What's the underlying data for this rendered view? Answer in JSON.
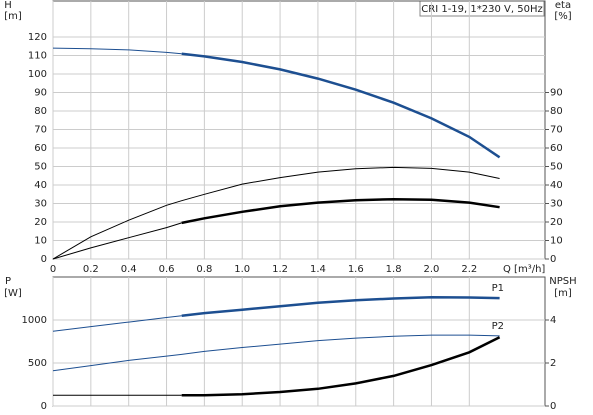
{
  "chart_data": [
    {
      "type": "line",
      "legend_box": "CRI 1-19, 1*230 V, 50Hz",
      "ylabel": "H",
      "yunit": "[m]",
      "y2label": "eta",
      "y2unit": "[%]",
      "xlabel": "Q [m³/h]",
      "x": [
        0,
        0.2,
        0.4,
        0.6,
        0.68,
        0.8,
        1.0,
        1.2,
        1.4,
        1.6,
        1.8,
        2.0,
        2.2,
        2.36
      ],
      "xlim": [
        0,
        2.6
      ],
      "xticks": [
        0,
        0.2,
        0.4,
        0.6,
        0.8,
        {
          "value": 1,
          "label": "1.0"
        },
        1.2,
        1.4,
        1.6,
        1.8,
        {
          "value": 2,
          "label": "2.0"
        },
        2.2
      ],
      "ylim": [
        0,
        130
      ],
      "yticks": [
        0,
        10,
        20,
        30,
        40,
        50,
        60,
        70,
        80,
        90,
        100,
        110,
        120
      ],
      "y2lim": [
        0,
        130
      ],
      "y2ticks": [
        0,
        10,
        20,
        30,
        40,
        50,
        60,
        70,
        80,
        90
      ],
      "grid": true,
      "series": [
        {
          "color": "#1d4f91",
          "width": 1,
          "values": [
            114,
            113.6,
            113,
            111.7,
            111,
            null,
            null,
            null,
            null,
            null,
            null,
            null,
            null,
            null
          ]
        },
        {
          "color": "#1d4f91",
          "width": 2.5,
          "values": [
            null,
            null,
            null,
            null,
            111,
            109.5,
            106.5,
            102.5,
            97.5,
            91.5,
            84.5,
            76,
            66,
            55
          ]
        },
        {
          "color": "#000000",
          "width": 1,
          "axis": "y2",
          "values": [
            0,
            12,
            21,
            29,
            31.5,
            35,
            40.5,
            44,
            47,
            48.8,
            49.5,
            49,
            47,
            43.5
          ]
        },
        {
          "color": "#000000",
          "width": 1,
          "axis": "y2",
          "values": [
            0,
            6,
            11.5,
            17,
            19.5,
            null,
            null,
            null,
            null,
            null,
            null,
            null,
            null,
            null
          ]
        },
        {
          "color": "#000000",
          "width": 2.5,
          "axis": "y2",
          "values": [
            null,
            null,
            null,
            null,
            19.5,
            22,
            25.5,
            28.5,
            30.5,
            31.8,
            32.3,
            32,
            30.5,
            28
          ]
        }
      ]
    },
    {
      "type": "line",
      "ylabel": "P",
      "yunit": "[W]",
      "y2label": "NPSH",
      "y2unit": "[m]",
      "x": [
        0,
        0.2,
        0.4,
        0.6,
        0.68,
        0.8,
        1.0,
        1.2,
        1.4,
        1.6,
        1.8,
        2.0,
        2.2,
        2.36
      ],
      "xlim": [
        0,
        2.6
      ],
      "xticks": [
        0,
        0.2,
        0.4,
        0.6,
        0.8,
        1,
        1.2,
        1.4,
        1.6,
        1.8,
        2,
        2.2
      ],
      "ylim": [
        0,
        1500
      ],
      "yticks": [
        0,
        500,
        1000
      ],
      "y2lim": [
        0,
        6
      ],
      "y2ticks": [
        0,
        2,
        4
      ],
      "grid": true,
      "series": [
        {
          "color": "#1d4f91",
          "width": 1,
          "values": [
            870,
            923,
            976,
            1029,
            1050,
            null,
            null,
            null,
            null,
            null,
            null,
            null,
            null,
            null
          ]
        },
        {
          "name": "P1",
          "color": "#1d4f91",
          "width": 2.5,
          "values": [
            null,
            null,
            null,
            null,
            1050,
            1080,
            1120,
            1160,
            1200,
            1230,
            1250,
            1265,
            1262,
            1255
          ]
        },
        {
          "name": "P2",
          "color": "#1d4f91",
          "width": 1,
          "values": [
            410,
            470,
            530,
            580,
            600,
            635,
            680,
            720,
            760,
            790,
            810,
            825,
            825,
            815
          ]
        },
        {
          "color": "#000000",
          "width": 1,
          "axis": "y2",
          "values": [
            0.5,
            0.5,
            0.5,
            0.5,
            0.5,
            null,
            null,
            null,
            null,
            null,
            null,
            null,
            null,
            null
          ]
        },
        {
          "color": "#000000",
          "width": 2.5,
          "axis": "y2",
          "values": [
            null,
            null,
            null,
            null,
            0.5,
            0.5,
            0.55,
            0.65,
            0.8,
            1.05,
            1.4,
            1.9,
            2.5,
            3.2
          ]
        }
      ]
    }
  ]
}
